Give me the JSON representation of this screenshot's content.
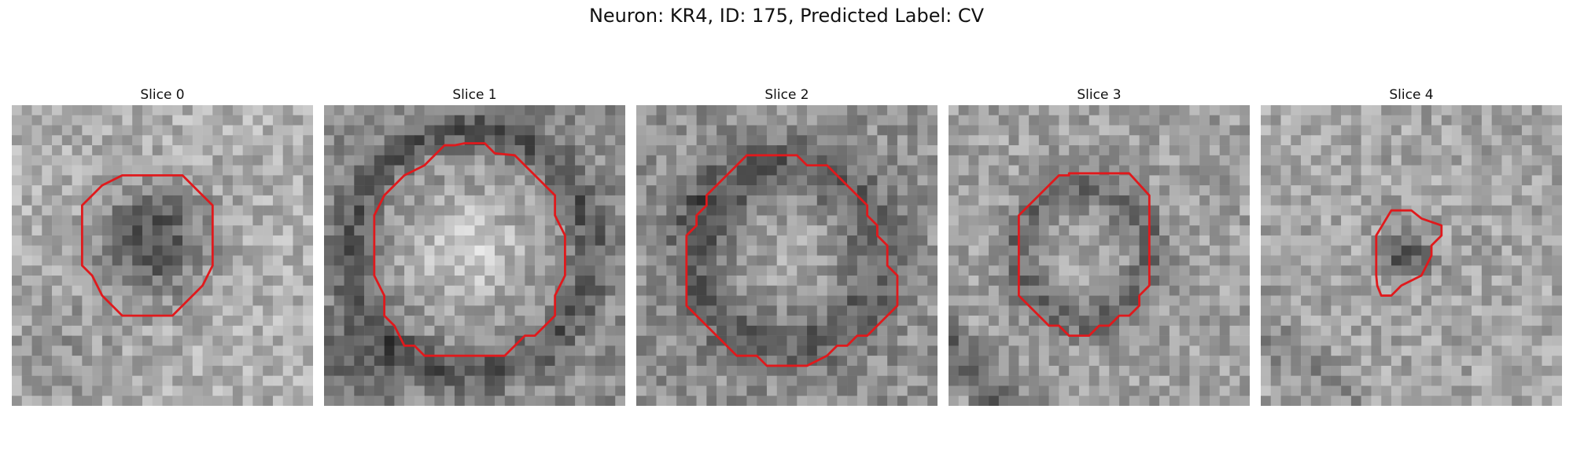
{
  "figure": {
    "title": "Neuron: KR4, ID: 175, Predicted Label: CV"
  },
  "panels": [
    {
      "title": "Slice 0",
      "center": "dark",
      "outline_color": "#e0191c"
    },
    {
      "title": "Slice 1",
      "center": "bright",
      "outline_color": "#e0191c"
    },
    {
      "title": "Slice 2",
      "center": "mixed",
      "outline_color": "#e0191c"
    },
    {
      "title": "Slice 3",
      "center": "ring",
      "outline_color": "#e0191c"
    },
    {
      "title": "Slice 4",
      "center": "small-dark",
      "outline_color": "#e0191c"
    }
  ]
}
